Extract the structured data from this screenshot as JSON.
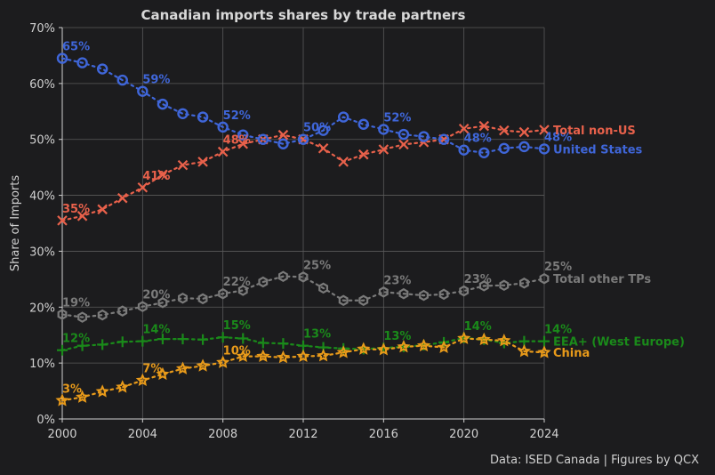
{
  "chart_data": {
    "type": "line",
    "title": "Canadian imports shares by trade partners",
    "ylabel": "Share of Imports",
    "xlabel": "",
    "source": "Data: ISED Canada | Figures by QCX",
    "xlim": [
      2000,
      2024
    ],
    "ylim": [
      0,
      70
    ],
    "x_ticks": [
      "2000",
      "2004",
      "2008",
      "2012",
      "2016",
      "2020",
      "2024"
    ],
    "y_ticks": [
      "0%",
      "10%",
      "20%",
      "30%",
      "40%",
      "50%",
      "60%",
      "70%"
    ],
    "grid": true,
    "x": [
      2000,
      2001,
      2002,
      2003,
      2004,
      2005,
      2006,
      2007,
      2008,
      2009,
      2010,
      2011,
      2012,
      2013,
      2014,
      2015,
      2016,
      2017,
      2018,
      2019,
      2020,
      2021,
      2022,
      2023,
      2024
    ],
    "series": [
      {
        "name": "Total non-US",
        "color": "#e8614b",
        "marker": "x",
        "values": [
          35.5,
          36.3,
          37.5,
          39.5,
          41.4,
          43.7,
          45.4,
          46.0,
          47.8,
          49.2,
          50.0,
          50.8,
          50.0,
          48.4,
          46.0,
          47.3,
          48.2,
          49.1,
          49.5,
          50.0,
          51.9,
          52.4,
          51.6,
          51.3,
          51.7
        ],
        "labels": [
          {
            "x": 2000,
            "text": "35%"
          },
          {
            "x": 2004,
            "text": "41%"
          },
          {
            "x": 2008,
            "text": "48%"
          }
        ]
      },
      {
        "name": "United States",
        "color": "#3f66d9",
        "marker": "o",
        "values": [
          64.5,
          63.7,
          62.6,
          60.6,
          58.6,
          56.3,
          54.6,
          54.0,
          52.2,
          50.8,
          50.0,
          49.2,
          50.0,
          51.6,
          54.0,
          52.7,
          51.8,
          50.9,
          50.5,
          50.0,
          48.1,
          47.6,
          48.4,
          48.7,
          48.3
        ],
        "labels": [
          {
            "x": 2000,
            "text": "65%"
          },
          {
            "x": 2004,
            "text": "59%"
          },
          {
            "x": 2008,
            "text": "52%"
          },
          {
            "x": 2012,
            "text": "50%"
          },
          {
            "x": 2016,
            "text": "52%"
          },
          {
            "x": 2020,
            "text": "48%"
          },
          {
            "x": 2024,
            "text": "48%"
          }
        ]
      },
      {
        "name": "Total other TPs",
        "color": "#7a7a7a",
        "marker": "hex",
        "values": [
          18.7,
          18.2,
          18.6,
          19.3,
          20.1,
          20.8,
          21.6,
          21.5,
          22.4,
          23.0,
          24.5,
          25.5,
          25.4,
          23.4,
          21.2,
          21.2,
          22.7,
          22.4,
          22.1,
          22.3,
          22.9,
          23.8,
          23.9,
          24.3,
          25.1
        ],
        "labels": [
          {
            "x": 2000,
            "text": "19%"
          },
          {
            "x": 2004,
            "text": "20%"
          },
          {
            "x": 2008,
            "text": "22%"
          },
          {
            "x": 2012,
            "text": "25%"
          },
          {
            "x": 2016,
            "text": "23%"
          },
          {
            "x": 2020,
            "text": "23%"
          },
          {
            "x": 2024,
            "text": "25%"
          }
        ]
      },
      {
        "name": "EEA+ (West Europe)",
        "color": "#1a8a1a",
        "marker": "+",
        "values": [
          12.3,
          13.1,
          13.3,
          13.8,
          13.9,
          14.3,
          14.3,
          14.2,
          14.6,
          14.4,
          13.6,
          13.5,
          13.1,
          12.8,
          12.6,
          12.5,
          12.7,
          12.9,
          13.2,
          13.7,
          14.5,
          14.2,
          13.6,
          13.9,
          13.9
        ],
        "labels": [
          {
            "x": 2000,
            "text": "12%"
          },
          {
            "x": 2004,
            "text": "14%"
          },
          {
            "x": 2008,
            "text": "15%"
          },
          {
            "x": 2012,
            "text": "13%"
          },
          {
            "x": 2016,
            "text": "13%"
          },
          {
            "x": 2020,
            "text": "14%"
          },
          {
            "x": 2024,
            "text": "14%"
          }
        ]
      },
      {
        "name": "China",
        "color": "#e89a1a",
        "marker": "star",
        "values": [
          3.3,
          3.9,
          4.9,
          5.7,
          6.9,
          8.0,
          9.0,
          9.5,
          10.1,
          11.2,
          11.2,
          11.0,
          11.2,
          11.3,
          11.9,
          12.5,
          12.4,
          12.9,
          13.1,
          12.8,
          14.4,
          14.2,
          14.0,
          12.1,
          11.9
        ],
        "labels": [
          {
            "x": 2000,
            "text": "3%"
          },
          {
            "x": 2004,
            "text": "7%"
          },
          {
            "x": 2008,
            "text": "10%"
          }
        ]
      }
    ],
    "end_labels": [
      {
        "series": "Total non-US",
        "text": "Total non-US",
        "value": 51.7
      },
      {
        "series": "United States",
        "text": "United States",
        "value": 48.3
      },
      {
        "series": "Total other TPs",
        "text": "Total other TPs",
        "value": 25.1
      },
      {
        "series": "EEA+ (West Europe)",
        "text": "EEA+ (West Europe)",
        "value": 13.9
      },
      {
        "series": "China",
        "text": "China",
        "value": 11.9
      }
    ]
  }
}
